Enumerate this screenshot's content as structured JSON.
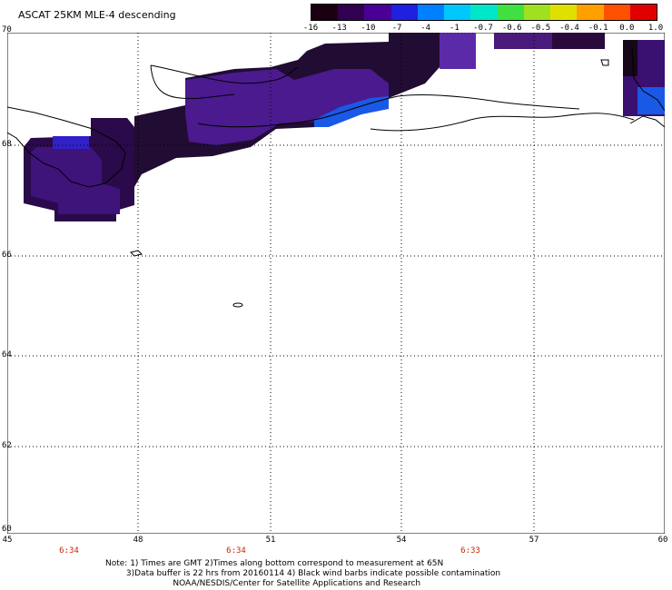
{
  "title": "ASCAT 25KM MLE-4 descending",
  "scale": {
    "labels": [
      "-16",
      "-13",
      "-10",
      "-7",
      "-4",
      "-1",
      "-0.7",
      "-0.6",
      "-0.5",
      "-0.4",
      "-0.1",
      "0.0",
      "1.0"
    ],
    "colors": [
      "#1a0010",
      "#320050",
      "#4a0096",
      "#2020e0",
      "#0080ff",
      "#00c8ff",
      "#00e6c8",
      "#40e040",
      "#a0e020",
      "#e0e000",
      "#ffa000",
      "#ff5000",
      "#e00000"
    ]
  },
  "map": {
    "lat_labels": [
      "70",
      "68",
      "66",
      "64",
      "62",
      "60"
    ],
    "lon_labels": [
      "45",
      "48",
      "51",
      "54",
      "57",
      "60"
    ],
    "time_labels": [
      "6:34",
      "6:34",
      "6:33"
    ]
  },
  "notes": {
    "line1": "Note: 1) Times are GMT 2)Times along bottom correspond to measurement at 65N",
    "line2": "        3)Data buffer is 22 hrs from 20160114 4) Black wind barbs indicate possible contamination",
    "line3": "                          NOAA/NESDIS/Center for Satellite Applications and Research"
  }
}
